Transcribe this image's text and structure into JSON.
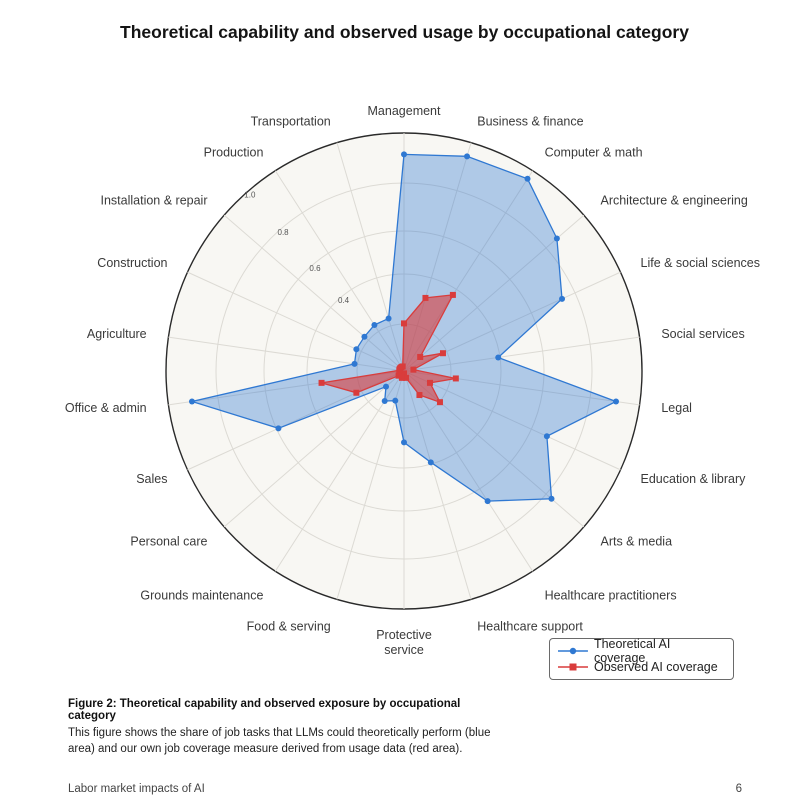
{
  "chart_data": {
    "type": "radar",
    "title": "Theoretical capability and observed usage by occupational category",
    "categories": [
      "Management",
      "Business & finance",
      "Computer & math",
      "Architecture & engineering",
      "Life & social sciences",
      "Social services",
      "Legal",
      "Education & library",
      "Arts & media",
      "Healthcare practitioners",
      "Healthcare support",
      "Protective service",
      "Food & serving",
      "Grounds maintenance",
      "Personal care",
      "Sales",
      "Office & admin",
      "Agriculture",
      "Construction",
      "Installation & repair",
      "Production",
      "Transportation"
    ],
    "series": [
      {
        "name": "Theoretical AI coverage",
        "color": "#2f78d2",
        "values": [
          0.91,
          0.94,
          0.96,
          0.85,
          0.73,
          0.4,
          0.9,
          0.66,
          0.82,
          0.65,
          0.4,
          0.3,
          0.13,
          0.15,
          0.1,
          0.58,
          0.9,
          0.21,
          0.22,
          0.22,
          0.23,
          0.23
        ]
      },
      {
        "name": "Observed AI coverage",
        "color": "#d93c3c",
        "values": [
          0.2,
          0.32,
          0.38,
          0.09,
          0.18,
          0.04,
          0.22,
          0.12,
          0.2,
          0.12,
          0.03,
          0.01,
          0.03,
          0.02,
          0.03,
          0.22,
          0.35,
          0.02,
          0.02,
          0.02,
          0.02,
          0.02
        ]
      }
    ],
    "r_ticks": [
      "0.4",
      "0.6",
      "0.8",
      "1.0"
    ],
    "rlim": [
      0,
      1
    ],
    "grid": true,
    "legend_position": "bottom-right"
  },
  "caption": {
    "title": "Figure 2: Theoretical capability and observed exposure by occupational category",
    "body": "This figure shows the share of job tasks that LLMs could theoretically perform (blue area) and our own job coverage measure derived from usage data (red area)."
  },
  "footer": {
    "left": "Labor market impacts of AI",
    "page_number": "6"
  }
}
